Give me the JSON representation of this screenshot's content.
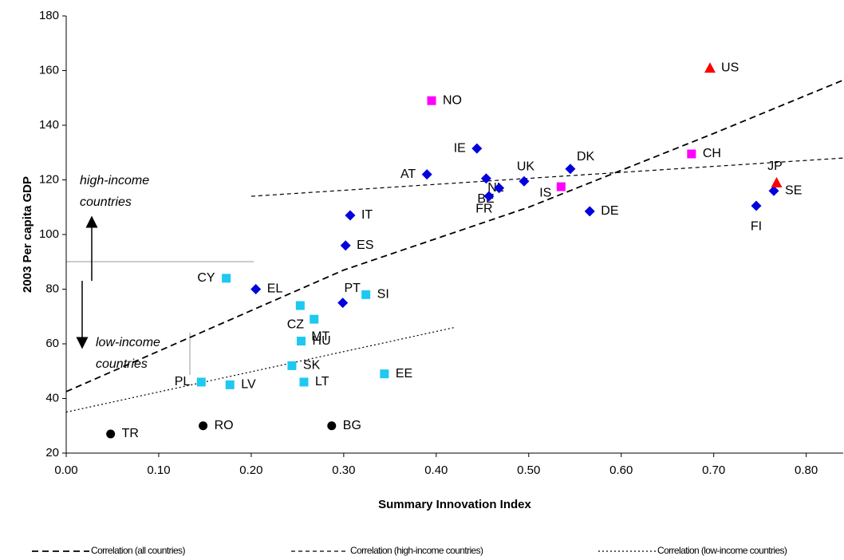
{
  "chart_data": {
    "type": "scatter",
    "xlabel": "Summary Innovation Index",
    "ylabel": "2003 Per capita GDP",
    "xlim": [
      0,
      0.84
    ],
    "ylim": [
      20,
      180
    ],
    "xticks": [
      {
        "value": 0,
        "label": "0.00"
      },
      {
        "value": 0.1,
        "label": "0.10"
      },
      {
        "value": 0.2,
        "label": "0.20"
      },
      {
        "value": 0.3,
        "label": "0.30"
      },
      {
        "value": 0.4,
        "label": "0.40"
      },
      {
        "value": 0.5,
        "label": "0.50"
      },
      {
        "value": 0.6,
        "label": "0.60"
      },
      {
        "value": 0.7,
        "label": "0.70"
      },
      {
        "value": 0.8,
        "label": "0.80"
      }
    ],
    "yticks": [
      20,
      40,
      60,
      80,
      100,
      120,
      140,
      160,
      180
    ],
    "points": {
      "labels": [
        "TR",
        "RO",
        "BG",
        "CY",
        "PL",
        "LV",
        "CZ",
        "MT",
        "HU",
        "SK",
        "LT",
        "EE",
        "SI",
        "EL",
        "PT",
        "ES",
        "IT",
        "AT",
        "IE",
        "NL",
        "BE",
        "FR",
        "UK",
        "DK",
        "DE",
        "FI",
        "SE",
        "NO",
        "IS",
        "CH",
        "US",
        "JP"
      ],
      "x": [
        0.048,
        0.148,
        0.287,
        0.173,
        0.146,
        0.177,
        0.253,
        0.268,
        0.254,
        0.244,
        0.257,
        0.344,
        0.324,
        0.205,
        0.299,
        0.302,
        0.307,
        0.39,
        0.444,
        0.454,
        0.468,
        0.457,
        0.495,
        0.545,
        0.566,
        0.746,
        0.765,
        0.395,
        0.535,
        0.676,
        0.696,
        0.768
      ],
      "values": [
        27,
        30,
        30,
        84,
        46,
        45,
        74,
        69,
        61,
        52,
        46,
        49,
        78,
        80,
        75,
        96,
        107,
        122,
        131.5,
        120.5,
        117,
        114,
        119.5,
        124,
        108.5,
        110.5,
        116,
        149,
        117.5,
        129.5,
        161,
        119
      ],
      "colors": [
        "#000000",
        "#000000",
        "#000000",
        "#1ec8f0",
        "#1ec8f0",
        "#1ec8f0",
        "#1ec8f0",
        "#1ec8f0",
        "#1ec8f0",
        "#1ec8f0",
        "#1ec8f0",
        "#1ec8f0",
        "#1ec8f0",
        "#0000dd",
        "#0000dd",
        "#0000dd",
        "#0000dd",
        "#0000dd",
        "#0000dd",
        "#0000dd",
        "#0000dd",
        "#0000dd",
        "#0000dd",
        "#0000dd",
        "#0000dd",
        "#0000dd",
        "#0000dd",
        "#ff00ff",
        "#ff00ff",
        "#ff00ff",
        "#ff0000",
        "#ff0000"
      ],
      "markers": [
        "circle",
        "circle",
        "circle",
        "square",
        "square",
        "square",
        "square",
        "square",
        "square",
        "square",
        "square",
        "square",
        "square",
        "diamond",
        "diamond",
        "diamond",
        "diamond",
        "diamond",
        "diamond",
        "diamond",
        "diamond",
        "diamond",
        "diamond",
        "diamond",
        "diamond",
        "diamond",
        "diamond",
        "square",
        "square",
        "square",
        "triangle",
        "triangle"
      ]
    },
    "series": [
      {
        "name": "Correlation (all countries)",
        "color": "#000000",
        "dash": "8,5",
        "x": [
          0,
          0.3,
          0.5,
          0.7,
          0.84
        ],
        "values": [
          42.5,
          87,
          110,
          137,
          156.5
        ]
      },
      {
        "name": "Correlation (high-income countries)",
        "color": "#000000",
        "dash": "5,4",
        "x": [
          0.2,
          0.84
        ],
        "values": [
          114,
          128
        ]
      },
      {
        "name": "Correlation (low-income countries)",
        "color": "#000000",
        "dash": "2,3",
        "x": [
          0,
          0.42
        ],
        "values": [
          35,
          66
        ]
      }
    ],
    "annotations": [
      [
        "high-income",
        "countries"
      ],
      [
        "low-income",
        "countries"
      ]
    ]
  }
}
